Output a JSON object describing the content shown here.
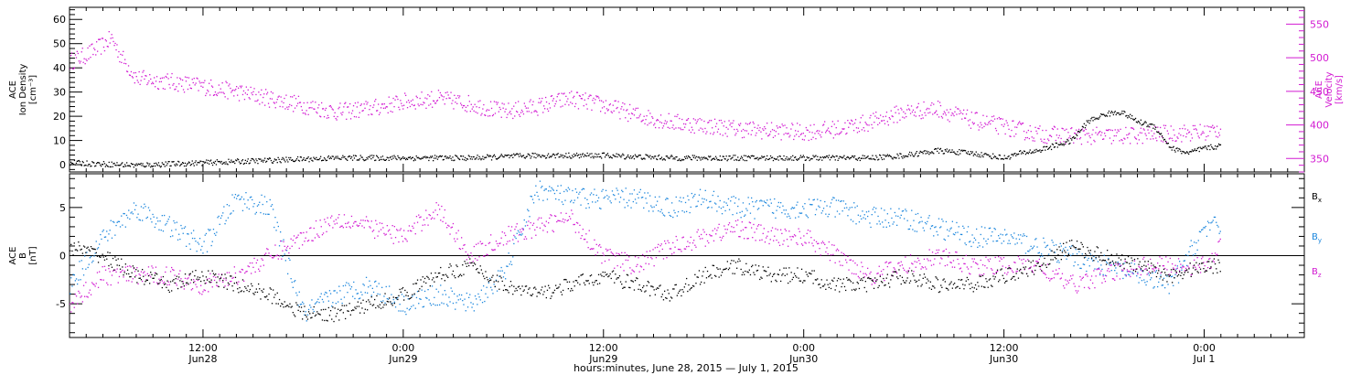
{
  "figure": {
    "xlabel": "hours:minutes, June 28, 2015 — July 1, 2015",
    "colors": {
      "black": "#000000",
      "blue": "#1b86dd",
      "magenta": "#d21ad2"
    }
  },
  "chart_data": [
    {
      "type": "scatter",
      "xaxis": {
        "ticks": [
          {
            "hour": 12,
            "label1": "12:00",
            "label2": "Jun28"
          },
          {
            "hour": 24,
            "label1": "0:00",
            "label2": "Jun29"
          },
          {
            "hour": 36,
            "label1": "12:00",
            "label2": "Jun29"
          },
          {
            "hour": 48,
            "label1": "0:00",
            "label2": "Jun30"
          },
          {
            "hour": 60,
            "label1": "12:00",
            "label2": "Jun30"
          },
          {
            "hour": 72,
            "label1": "0:00",
            "label2": "Jul 1"
          }
        ],
        "xlim_hours": [
          4,
          78
        ],
        "data_end_hours": 73
      },
      "left_axis": {
        "label_lines": [
          "ACE",
          "Ion Density",
          "[cm⁻³]"
        ],
        "ylim": [
          -3,
          65
        ],
        "ticks": [
          0,
          10,
          20,
          30,
          40,
          50,
          60
        ],
        "color": "#000000"
      },
      "right_axis": {
        "label_lines": [
          "ACE",
          "Velocity",
          "[km/s]"
        ],
        "ylim": [
          330,
          575
        ],
        "ticks": [
          350,
          400,
          450,
          500,
          550
        ],
        "color": "#d21ad2"
      },
      "series": [
        {
          "axis": "left",
          "color": "#000000",
          "x": [
            4,
            8,
            12,
            16,
            20,
            24,
            28,
            32,
            36,
            40,
            44,
            48,
            52,
            54,
            56,
            58,
            60,
            61,
            62,
            63,
            64,
            65,
            66,
            67,
            68,
            69,
            70,
            71,
            72,
            73
          ],
          "y": [
            1,
            0,
            1,
            2,
            3,
            3,
            3,
            4,
            4,
            3,
            3,
            3,
            3,
            4,
            6,
            5,
            3,
            5,
            6,
            8,
            10,
            18,
            21,
            22,
            18,
            16,
            7,
            5,
            7,
            8
          ]
        },
        {
          "axis": "right",
          "color": "#d21ad2",
          "x": [
            4,
            5,
            6,
            6.5,
            7,
            8,
            10,
            12,
            14,
            16,
            18,
            20,
            22,
            24,
            26,
            28,
            30,
            32,
            34,
            36,
            38,
            40,
            42,
            44,
            46,
            48,
            50,
            52,
            54,
            56,
            58,
            60,
            62,
            64,
            66,
            68,
            70,
            72,
            73
          ],
          "y": [
            495,
            505,
            520,
            530,
            505,
            470,
            465,
            458,
            450,
            440,
            430,
            420,
            425,
            435,
            440,
            432,
            420,
            428,
            440,
            430,
            415,
            405,
            400,
            395,
            392,
            390,
            395,
            405,
            420,
            425,
            408,
            398,
            387,
            385,
            384,
            385,
            388,
            390,
            395
          ]
        }
      ]
    },
    {
      "type": "scatter",
      "xaxis": {
        "shared": true
      },
      "left_axis": {
        "label_lines": [
          "ACE",
          "B",
          "[nT]"
        ],
        "ylim": [
          -8.5,
          8.5
        ],
        "ticks": [
          -5,
          0,
          5
        ],
        "color": "#000000"
      },
      "legend": {
        "placement": "right",
        "entries": [
          {
            "base": "B",
            "sub": "x",
            "color": "#000000"
          },
          {
            "base": "B",
            "sub": "y",
            "color": "#1b86dd"
          },
          {
            "base": "B",
            "sub": "z",
            "color": "#d21ad2"
          }
        ]
      },
      "zero_line": true,
      "series": [
        {
          "name": "Bx",
          "color": "#000000",
          "x": [
            4,
            6,
            8,
            10,
            12,
            14,
            16,
            18,
            20,
            22,
            24,
            26,
            28,
            30,
            32,
            34,
            36,
            38,
            40,
            42,
            44,
            46,
            48,
            50,
            52,
            54,
            56,
            58,
            60,
            62,
            64,
            66,
            68,
            70,
            72,
            73
          ],
          "y": [
            1,
            0,
            -2,
            -3,
            -2,
            -3,
            -4,
            -6,
            -6,
            -5,
            -4,
            -2,
            -1,
            -3,
            -4,
            -3,
            -2,
            -3,
            -4,
            -2,
            -1,
            -2,
            -2,
            -3,
            -3,
            -2,
            -3,
            -3,
            -2,
            -1,
            1,
            0,
            -1,
            -2,
            -1,
            -1
          ]
        },
        {
          "name": "By",
          "color": "#1b86dd",
          "x": [
            4,
            6,
            8,
            10,
            12,
            14,
            16,
            18,
            20,
            22,
            24,
            26,
            28,
            30,
            32,
            34,
            36,
            38,
            40,
            42,
            44,
            46,
            48,
            50,
            52,
            54,
            56,
            58,
            60,
            62,
            64,
            66,
            68,
            70,
            72,
            73
          ],
          "y": [
            -3,
            2,
            5,
            3,
            1,
            6,
            5,
            -6,
            -4,
            -3,
            -5,
            -4,
            -5,
            -2,
            7,
            6,
            6,
            6,
            5,
            6,
            5,
            5,
            5,
            5,
            4,
            4,
            3,
            2,
            2,
            1,
            0,
            -1,
            -2,
            -3,
            3,
            3
          ]
        },
        {
          "name": "Bz",
          "color": "#d21ad2",
          "x": [
            4,
            6,
            8,
            10,
            12,
            14,
            16,
            18,
            20,
            22,
            24,
            26,
            28,
            30,
            32,
            34,
            36,
            38,
            40,
            42,
            44,
            46,
            48,
            50,
            52,
            54,
            56,
            58,
            60,
            62,
            64,
            66,
            68,
            70,
            72,
            73
          ],
          "y": [
            -5,
            -2,
            -2,
            -2,
            -3,
            -2,
            0,
            2,
            4,
            3,
            2,
            5,
            0,
            2,
            3,
            4,
            0,
            -1,
            1,
            2,
            3,
            2,
            2,
            0,
            -2,
            -1,
            0,
            -1,
            -1,
            -1,
            -3,
            -2,
            -1,
            -1,
            -1,
            1
          ]
        }
      ]
    }
  ]
}
